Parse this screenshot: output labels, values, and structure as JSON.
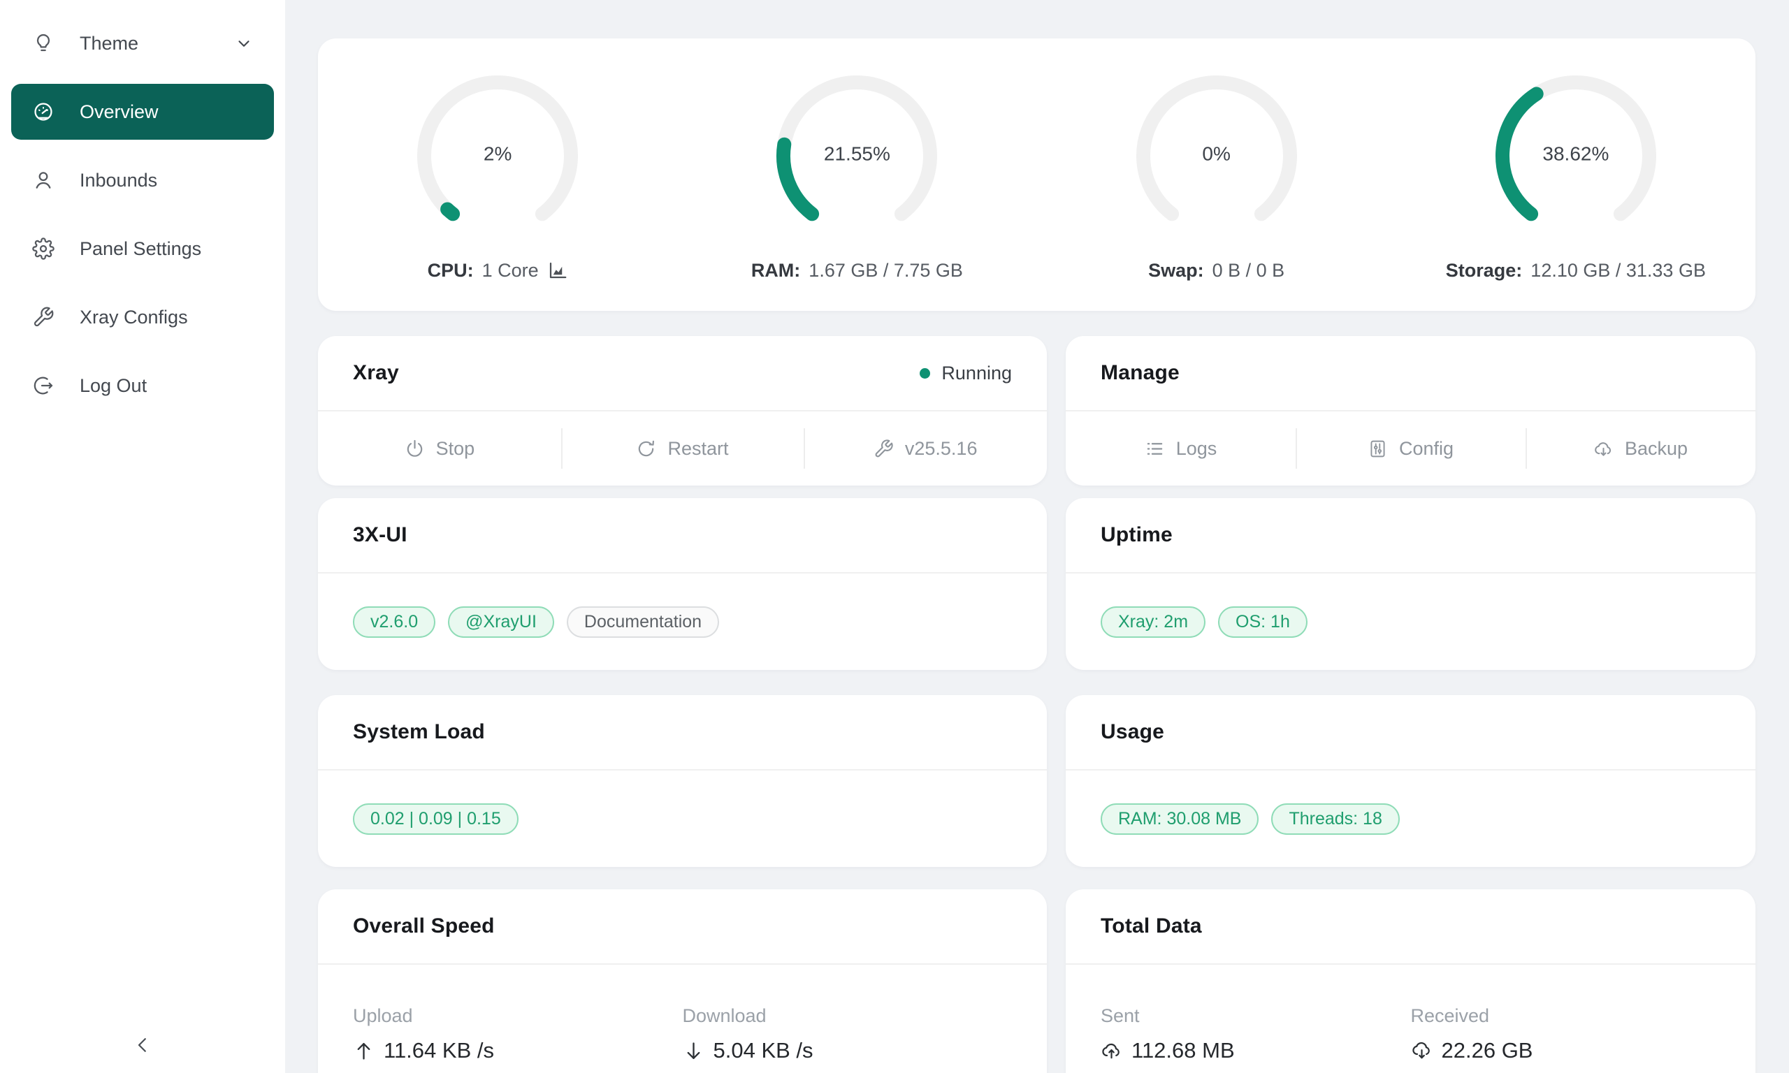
{
  "colors": {
    "page_bg": "#f0f2f5",
    "accent_teal": "#0e9173",
    "sidebar_active_bg": "#0b6257",
    "gauge_track": "#f0f0f0",
    "tag_green_text": "#1f9e6e",
    "tag_green_border": "#8fdcb7",
    "tag_green_bg": "#e9f9f0",
    "tag_gray_text": "#5c6166",
    "status_running_dot": "#0e9173"
  },
  "sidebar": {
    "items": [
      {
        "label": "Theme",
        "icon": "bulb-icon",
        "has_chevron": true,
        "active": false
      },
      {
        "label": "Overview",
        "icon": "dashboard-icon",
        "has_chevron": false,
        "active": true
      },
      {
        "label": "Inbounds",
        "icon": "user-icon",
        "has_chevron": false,
        "active": false
      },
      {
        "label": "Panel Settings",
        "icon": "gear-icon",
        "has_chevron": false,
        "active": false
      },
      {
        "label": "Xray Configs",
        "icon": "wrench-icon",
        "has_chevron": false,
        "active": false
      },
      {
        "label": "Log Out",
        "icon": "logout-icon",
        "has_chevron": false,
        "active": false
      }
    ],
    "collapse_icon": "chevron-left-icon"
  },
  "chart_data": {
    "type": "gauge-set",
    "arc_gap_degrees": 75,
    "track_color": "#f0f0f0",
    "fill_color": "#0e9173",
    "gauges": [
      {
        "percent": 2,
        "percent_label": "2%",
        "label": "CPU:",
        "value": "1 Core",
        "extra_icon": "area-chart-icon"
      },
      {
        "percent": 21.55,
        "percent_label": "21.55%",
        "label": "RAM:",
        "value": "1.67 GB / 7.75 GB",
        "extra_icon": null
      },
      {
        "percent": 0,
        "percent_label": "0%",
        "label": "Swap:",
        "value": "0 B / 0 B",
        "extra_icon": null
      },
      {
        "percent": 38.62,
        "percent_label": "38.62%",
        "label": "Storage:",
        "value": "12.10 GB / 31.33 GB",
        "extra_icon": null
      }
    ]
  },
  "xray_card": {
    "title": "Xray",
    "status_label": "Running",
    "actions": [
      {
        "label": "Stop",
        "icon": "power-icon"
      },
      {
        "label": "Restart",
        "icon": "reload-icon"
      },
      {
        "label": "v25.5.16",
        "icon": "wrench-icon"
      }
    ]
  },
  "manage_card": {
    "title": "Manage",
    "actions": [
      {
        "label": "Logs",
        "icon": "list-icon"
      },
      {
        "label": "Config",
        "icon": "sliders-icon"
      },
      {
        "label": "Backup",
        "icon": "cloud-download-icon"
      }
    ]
  },
  "xui_card": {
    "title": "3X-UI",
    "tags": [
      {
        "label": "v2.6.0",
        "variant": "green"
      },
      {
        "label": "@XrayUI",
        "variant": "green"
      },
      {
        "label": "Documentation",
        "variant": "gray"
      }
    ]
  },
  "uptime_card": {
    "title": "Uptime",
    "tags": [
      {
        "label": "Xray: 2m",
        "variant": "green"
      },
      {
        "label": "OS: 1h",
        "variant": "green"
      }
    ]
  },
  "system_load_card": {
    "title": "System Load",
    "tags": [
      {
        "label": "0.02 | 0.09 | 0.15",
        "variant": "green"
      }
    ]
  },
  "usage_card": {
    "title": "Usage",
    "tags": [
      {
        "label": "RAM: 30.08 MB",
        "variant": "green"
      },
      {
        "label": "Threads: 18",
        "variant": "green"
      }
    ]
  },
  "overall_speed_card": {
    "title": "Overall Speed",
    "metrics": [
      {
        "label": "Upload",
        "value": "11.64 KB /s",
        "icon": "arrow-up-icon"
      },
      {
        "label": "Download",
        "value": "5.04 KB /s",
        "icon": "arrow-down-icon"
      }
    ]
  },
  "total_data_card": {
    "title": "Total Data",
    "metrics": [
      {
        "label": "Sent",
        "value": "112.68 MB",
        "icon": "cloud-upload-icon"
      },
      {
        "label": "Received",
        "value": "22.26 GB",
        "icon": "cloud-download-icon"
      }
    ]
  }
}
